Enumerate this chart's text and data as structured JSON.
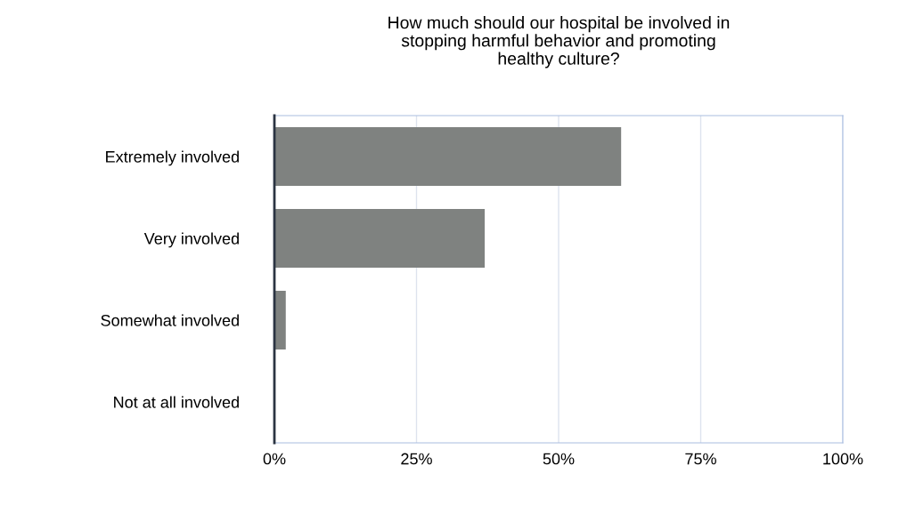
{
  "chart_data": {
    "type": "bar",
    "orientation": "horizontal",
    "title": "How much should our hospital be involved in\nstopping harmful behavior and promoting\nhealthy culture?",
    "categories": [
      "Extremely involved",
      "Very involved",
      "Somewhat involved",
      "Not at all involved"
    ],
    "values": [
      61,
      37,
      2,
      0
    ],
    "color": "#7f8280",
    "xlim": [
      0,
      100
    ],
    "xticks": [
      {
        "value": 0,
        "label": "0%"
      },
      {
        "value": 25,
        "label": "25%"
      },
      {
        "value": 50,
        "label": "50%"
      },
      {
        "value": 75,
        "label": "75%"
      },
      {
        "value": 100,
        "label": "100%"
      }
    ],
    "grid": "x",
    "legend": false
  }
}
